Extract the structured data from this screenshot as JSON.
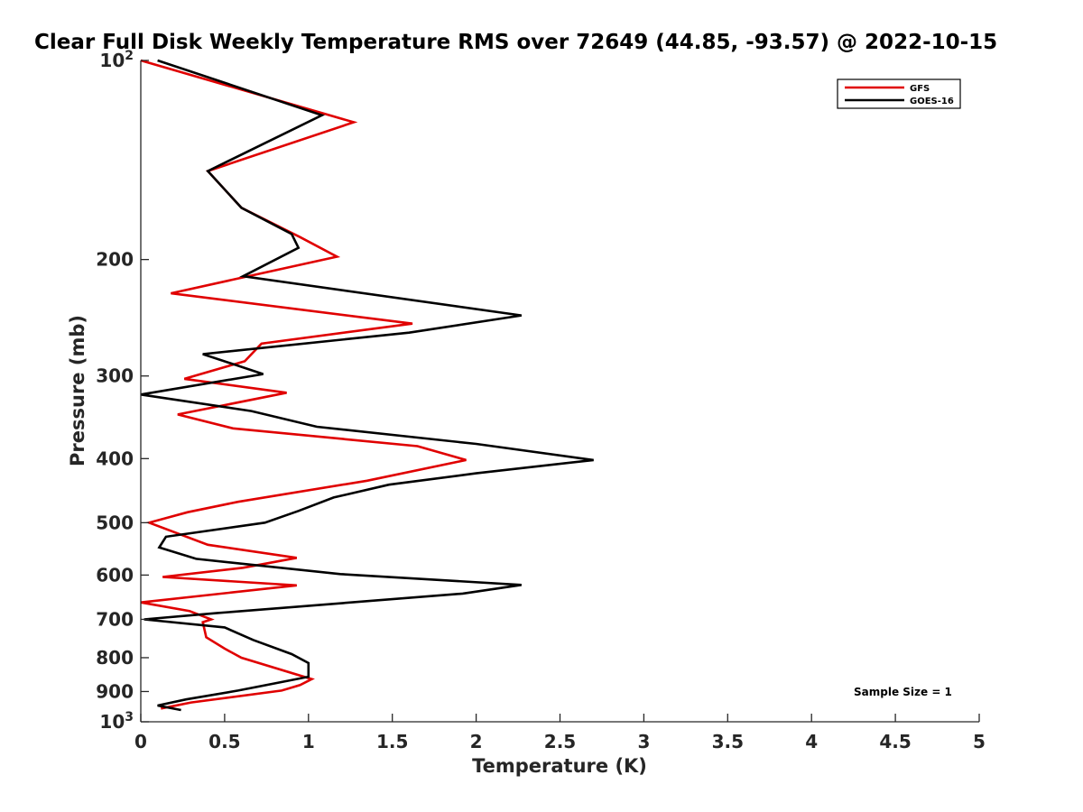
{
  "chart_data": {
    "type": "line",
    "title": "Clear Full Disk Weekly Temperature RMS over 72649 (44.85, -93.57) @ 2022-10-15",
    "xlabel": "Temperature (K)",
    "ylabel": "Pressure (mb)",
    "xlim": [
      0,
      5
    ],
    "ylim": [
      100,
      1000
    ],
    "yscale": "log",
    "y_reversed": true,
    "x_ticks": [
      "0",
      "0.5",
      "1",
      "1.5",
      "2",
      "2.5",
      "3",
      "3.5",
      "4",
      "4.5",
      "5"
    ],
    "y_ticks": [
      {
        "value": 100,
        "label": "10",
        "sup": "2"
      },
      {
        "value": 200,
        "label": "200",
        "sup": ""
      },
      {
        "value": 300,
        "label": "300",
        "sup": ""
      },
      {
        "value": 400,
        "label": "400",
        "sup": ""
      },
      {
        "value": 500,
        "label": "500",
        "sup": ""
      },
      {
        "value": 600,
        "label": "600",
        "sup": ""
      },
      {
        "value": 700,
        "label": "700",
        "sup": ""
      },
      {
        "value": 800,
        "label": "800",
        "sup": ""
      },
      {
        "value": 900,
        "label": "900",
        "sup": ""
      },
      {
        "value": 1000,
        "label": "10",
        "sup": "3"
      }
    ],
    "grid": false,
    "legend_position": "top-right",
    "annotation": "Sample Size = 1",
    "series": [
      {
        "name": "GFS",
        "color": "#e00000",
        "x": [
          0.0,
          1.27,
          0.4,
          0.6,
          0.95,
          1.17,
          0.18,
          1.62,
          0.72,
          0.62,
          0.26,
          0.87,
          0.22,
          0.55,
          1.65,
          1.94,
          1.35,
          0.58,
          0.28,
          0.05,
          0.4,
          0.93,
          0.61,
          0.13,
          0.93,
          0.0,
          0.29,
          0.42,
          0.37,
          0.39,
          0.5,
          0.6,
          1.02,
          0.95,
          0.84,
          0.3,
          0.12
        ],
        "y": [
          100,
          124,
          147,
          167,
          185,
          198,
          225,
          250,
          268,
          285,
          303,
          318,
          343,
          360,
          383,
          402,
          432,
          465,
          482,
          500,
          540,
          565,
          585,
          604,
          622,
          660,
          680,
          700,
          707,
          745,
          775,
          800,
          862,
          880,
          897,
          935,
          955
        ]
      },
      {
        "name": "GOES-16",
        "color": "#000000",
        "x": [
          0.1,
          1.08,
          0.4,
          0.6,
          0.9,
          0.94,
          0.61,
          2.27,
          1.6,
          0.37,
          0.73,
          0.0,
          0.66,
          1.05,
          2.0,
          2.7,
          2.0,
          1.48,
          1.15,
          0.94,
          0.74,
          0.15,
          0.11,
          0.33,
          1.19,
          2.27,
          1.92,
          0.45,
          0.02,
          0.5,
          0.67,
          0.9,
          1.0,
          1.0,
          0.58,
          0.27,
          0.1,
          0.24
        ],
        "y": [
          100,
          121,
          147,
          167,
          183,
          192,
          212,
          243,
          258,
          278,
          298,
          320,
          339,
          358,
          380,
          402,
          421,
          438,
          458,
          480,
          500,
          525,
          545,
          567,
          598,
          621,
          640,
          685,
          700,
          720,
          752,
          790,
          815,
          855,
          897,
          925,
          945,
          960
        ]
      }
    ]
  }
}
